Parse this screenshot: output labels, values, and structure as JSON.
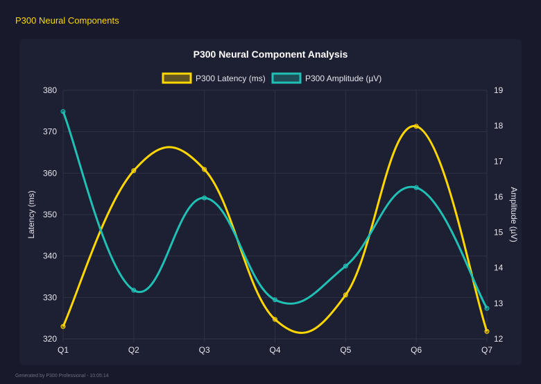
{
  "page": {
    "title": "P300 Neural Components",
    "footer": "Generated by P300 Professional - 10:05:14"
  },
  "chart_data": {
    "type": "line",
    "title": "P300 Neural Component Analysis",
    "categories": [
      "Q1",
      "Q2",
      "Q3",
      "Q4",
      "Q5",
      "Q6",
      "Q7"
    ],
    "legend_position": "top",
    "grid": true,
    "y_left": {
      "label": "Latency (ms)",
      "range": [
        320,
        380
      ],
      "ticks": [
        320,
        330,
        340,
        350,
        360,
        370,
        380
      ]
    },
    "y_right": {
      "label": "Amplitude (µV)",
      "range": [
        12,
        19
      ],
      "ticks": [
        12,
        13,
        14,
        15,
        16,
        17,
        18,
        19
      ]
    },
    "series": [
      {
        "name": "P300 Latency (ms)",
        "axis": "left",
        "color": "#ffd700",
        "values": [
          323.0,
          360.6,
          360.9,
          324.7,
          330.6,
          371.3,
          321.8
        ]
      },
      {
        "name": "P300 Amplitude (µV)",
        "axis": "right",
        "color": "#20c0b4",
        "values": [
          18.4,
          13.37,
          15.97,
          13.1,
          14.05,
          16.26,
          12.86
        ]
      }
    ]
  }
}
